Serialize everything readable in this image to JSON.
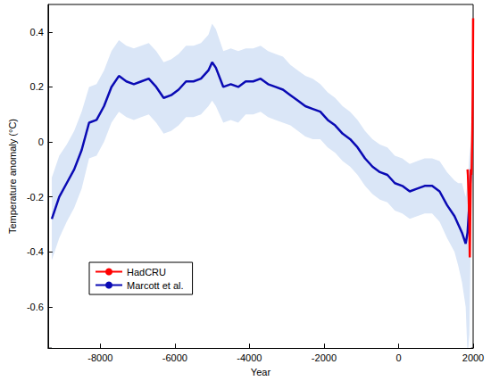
{
  "chart_data": {
    "type": "line",
    "x_label": "Year",
    "y_label": "Temperature anomaly (°C)",
    "xlim": [
      -9400,
      2000
    ],
    "xticks": [
      -8000,
      -6000,
      -4000,
      -2000,
      0,
      2000
    ],
    "ylim": [
      -0.75,
      0.5
    ],
    "yticks": [
      -0.6,
      -0.4,
      -0.2,
      0,
      0.2,
      0.4
    ],
    "grid": false,
    "legend": "lower left",
    "series": [
      {
        "name": "HadCRU",
        "color": "#ff0000",
        "x": [
          1850,
          1860,
          1880,
          1900,
          1910,
          1920,
          1940,
          1950,
          1960,
          1970,
          1980,
          1990,
          2000
        ],
        "values": [
          -0.1,
          -0.12,
          -0.2,
          -0.3,
          -0.42,
          -0.3,
          -0.1,
          -0.12,
          -0.1,
          -0.1,
          0.05,
          0.2,
          0.45
        ]
      },
      {
        "name": "Marcott et al.",
        "color": "#0a0ab4",
        "x": [
          -9300,
          -9100,
          -8900,
          -8700,
          -8500,
          -8300,
          -8100,
          -7900,
          -7700,
          -7500,
          -7300,
          -7100,
          -6900,
          -6700,
          -6500,
          -6300,
          -6100,
          -5900,
          -5700,
          -5500,
          -5300,
          -5100,
          -5000,
          -4900,
          -4700,
          -4500,
          -4300,
          -4100,
          -3900,
          -3700,
          -3500,
          -3300,
          -3100,
          -2900,
          -2700,
          -2500,
          -2300,
          -2100,
          -1900,
          -1700,
          -1500,
          -1300,
          -1100,
          -900,
          -700,
          -500,
          -300,
          -100,
          100,
          300,
          500,
          700,
          900,
          1100,
          1300,
          1500,
          1600,
          1700,
          1800,
          1850,
          1900,
          1940
        ],
        "values": [
          -0.28,
          -0.2,
          -0.15,
          -0.1,
          -0.03,
          0.07,
          0.08,
          0.13,
          0.2,
          0.24,
          0.22,
          0.21,
          0.22,
          0.23,
          0.2,
          0.16,
          0.17,
          0.19,
          0.22,
          0.22,
          0.23,
          0.26,
          0.29,
          0.27,
          0.2,
          0.21,
          0.2,
          0.22,
          0.22,
          0.23,
          0.21,
          0.2,
          0.19,
          0.17,
          0.15,
          0.13,
          0.12,
          0.11,
          0.08,
          0.06,
          0.03,
          0.01,
          -0.02,
          -0.06,
          -0.09,
          -0.11,
          -0.12,
          -0.15,
          -0.16,
          -0.18,
          -0.17,
          -0.16,
          -0.16,
          -0.18,
          -0.23,
          -0.27,
          -0.3,
          -0.33,
          -0.37,
          -0.33,
          -0.22,
          -0.1
        ],
        "upper": [
          -0.13,
          -0.05,
          -0.01,
          0.04,
          0.11,
          0.2,
          0.21,
          0.26,
          0.33,
          0.37,
          0.35,
          0.34,
          0.35,
          0.36,
          0.33,
          0.29,
          0.3,
          0.32,
          0.35,
          0.35,
          0.36,
          0.39,
          0.43,
          0.41,
          0.33,
          0.34,
          0.33,
          0.34,
          0.34,
          0.35,
          0.33,
          0.32,
          0.31,
          0.28,
          0.26,
          0.24,
          0.23,
          0.21,
          0.18,
          0.16,
          0.13,
          0.11,
          0.08,
          0.04,
          0.01,
          -0.01,
          -0.02,
          -0.05,
          -0.06,
          -0.08,
          -0.07,
          -0.06,
          -0.06,
          -0.07,
          -0.11,
          -0.14,
          -0.15,
          -0.15,
          -0.2,
          -0.15,
          -0.05,
          0.0
        ],
        "lower": [
          -0.43,
          -0.35,
          -0.29,
          -0.24,
          -0.17,
          -0.06,
          -0.05,
          0.0,
          0.07,
          0.11,
          0.09,
          0.08,
          0.09,
          0.1,
          0.07,
          0.03,
          0.04,
          0.06,
          0.09,
          0.09,
          0.1,
          0.13,
          0.15,
          0.13,
          0.07,
          0.08,
          0.07,
          0.1,
          0.1,
          0.11,
          0.09,
          0.08,
          0.07,
          0.06,
          0.04,
          0.02,
          0.01,
          0.01,
          -0.02,
          -0.04,
          -0.07,
          -0.09,
          -0.12,
          -0.16,
          -0.19,
          -0.21,
          -0.22,
          -0.25,
          -0.26,
          -0.28,
          -0.27,
          -0.26,
          -0.26,
          -0.29,
          -0.35,
          -0.4,
          -0.45,
          -0.51,
          -0.6,
          -0.78,
          -0.7,
          -0.3
        ]
      }
    ]
  }
}
